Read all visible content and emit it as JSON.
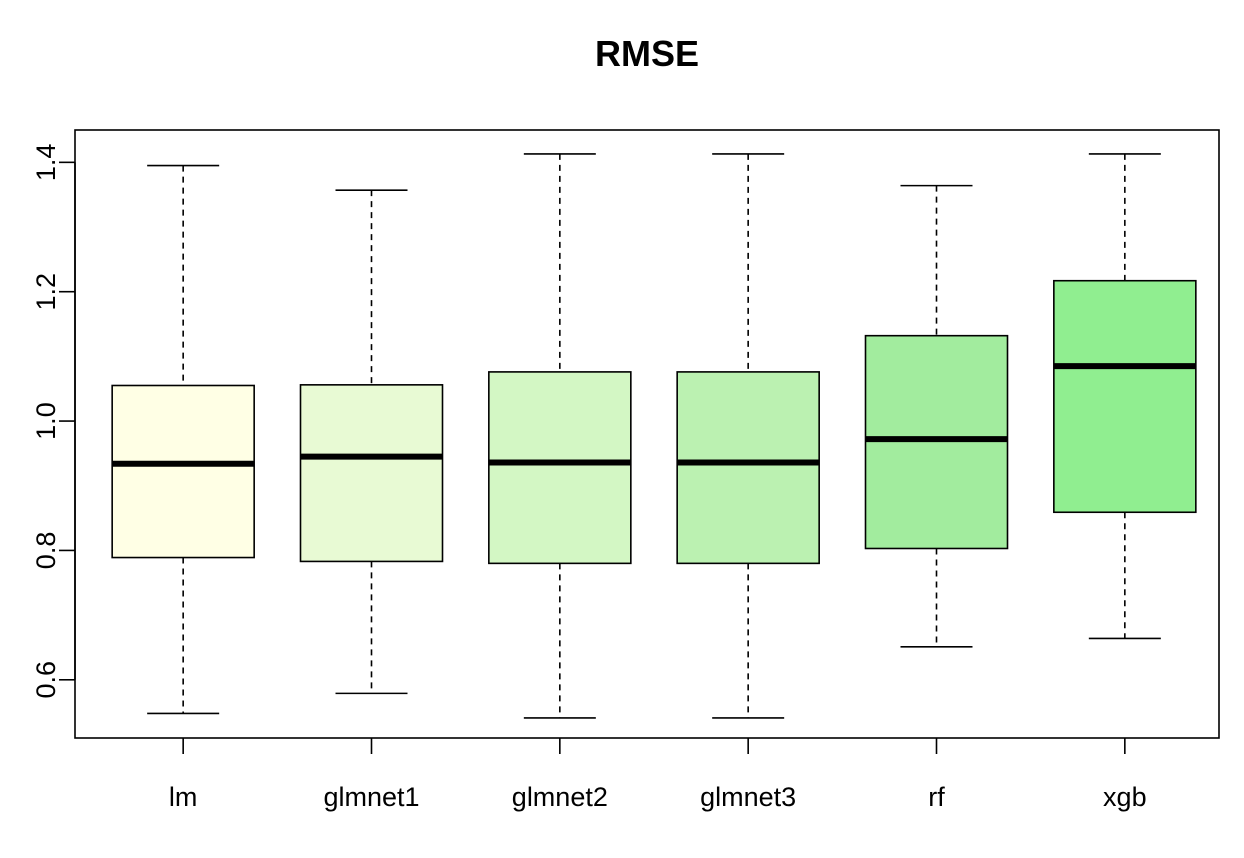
{
  "chart_data": {
    "type": "boxplot",
    "title": "RMSE",
    "xlabel": "",
    "ylabel": "",
    "ylim": [
      0.51,
      1.45
    ],
    "yticks": [
      0.6,
      0.8,
      1.0,
      1.2,
      1.4
    ],
    "ytick_labels": [
      "0.6",
      "0.8",
      "1.0",
      "1.2",
      "1.4"
    ],
    "grid": false,
    "categories": [
      "lm",
      "glmnet1",
      "glmnet2",
      "glmnet3",
      "rf",
      "xgb"
    ],
    "boxes": [
      {
        "name": "lm",
        "min": 0.548,
        "q1": 0.789,
        "median": 0.934,
        "q3": 1.055,
        "max": 1.395,
        "color": "#FFFFE5"
      },
      {
        "name": "glmnet1",
        "min": 0.579,
        "q1": 0.783,
        "median": 0.945,
        "q3": 1.056,
        "max": 1.357,
        "color": "#E8FAD4"
      },
      {
        "name": "glmnet2",
        "min": 0.541,
        "q1": 0.78,
        "median": 0.936,
        "q3": 1.076,
        "max": 1.413,
        "color": "#D3F7C4"
      },
      {
        "name": "glmnet3",
        "min": 0.541,
        "q1": 0.78,
        "median": 0.936,
        "q3": 1.076,
        "max": 1.413,
        "color": "#BBF1B1"
      },
      {
        "name": "rf",
        "min": 0.651,
        "q1": 0.803,
        "median": 0.972,
        "q3": 1.132,
        "max": 1.364,
        "color": "#A2EC9E"
      },
      {
        "name": "xgb",
        "min": 0.664,
        "q1": 0.859,
        "median": 1.085,
        "q3": 1.217,
        "max": 1.413,
        "color": "#90EE90"
      }
    ]
  }
}
